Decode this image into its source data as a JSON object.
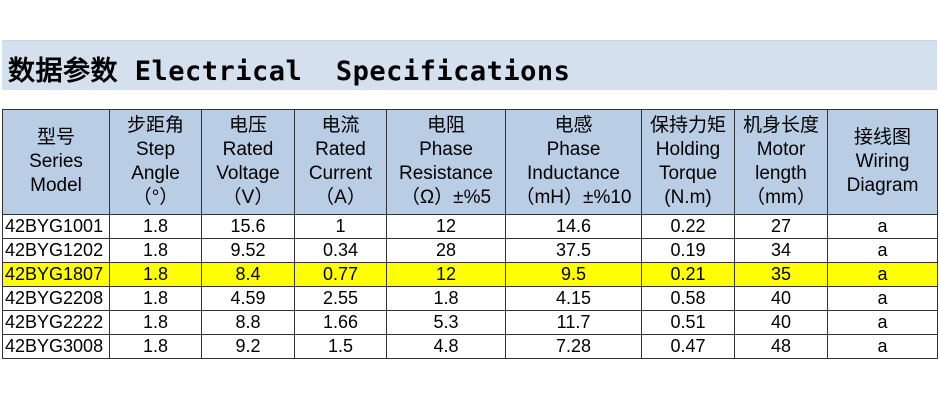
{
  "title": "数据参数 Electrical  Specifications",
  "table": {
    "headers": [
      {
        "lines": [
          "型号",
          "Series",
          "Model"
        ]
      },
      {
        "lines": [
          "步距角",
          "Step",
          "Angle",
          "（°）"
        ]
      },
      {
        "lines": [
          "电压",
          "Rated",
          "Voltage",
          "（V）"
        ]
      },
      {
        "lines": [
          "电流",
          "Rated",
          "Current",
          "（A）"
        ]
      },
      {
        "lines": [
          "电阻",
          "Phase",
          "Resistance",
          "（Ω）±%5"
        ]
      },
      {
        "lines": [
          "电感",
          "Phase",
          "Inductance",
          "（mH）±%10"
        ]
      },
      {
        "lines": [
          "保持力矩",
          "Holding",
          "Torque",
          "(N.m)"
        ]
      },
      {
        "lines": [
          "机身长度",
          "Motor",
          "length",
          "（mm）"
        ]
      },
      {
        "lines": [
          "接线图",
          "Wiring",
          "Diagram"
        ]
      }
    ],
    "rows": [
      {
        "cells": [
          "42BYG1001",
          "1.8",
          "15.6",
          "1",
          "12",
          "14.6",
          "0.22",
          "27",
          "a"
        ],
        "highlighted": false
      },
      {
        "cells": [
          "42BYG1202",
          "1.8",
          "9.52",
          "0.34",
          "28",
          "37.5",
          "0.19",
          "34",
          "a"
        ],
        "highlighted": false
      },
      {
        "cells": [
          "42BYG1807",
          "1.8",
          "8.4",
          "0.77",
          "12",
          "9.5",
          "0.21",
          "35",
          "a"
        ],
        "highlighted": true
      },
      {
        "cells": [
          "42BYG2208",
          "1.8",
          "4.59",
          "2.55",
          "1.8",
          "4.15",
          "0.58",
          "40",
          "a"
        ],
        "highlighted": false
      },
      {
        "cells": [
          "42BYG2222",
          "1.8",
          "8.8",
          "1.66",
          "5.3",
          "11.7",
          "0.51",
          "40",
          "a"
        ],
        "highlighted": false
      },
      {
        "cells": [
          "42BYG3008",
          "1.8",
          "9.2",
          "1.5",
          "4.8",
          "7.28",
          "0.47",
          "48",
          "a"
        ],
        "highlighted": false
      }
    ]
  },
  "colors": {
    "title_bar_bg": "#d5e0ef",
    "header_bg": "#b9cde5",
    "highlight_row_bg": "#ffff00",
    "border": "#333333"
  }
}
